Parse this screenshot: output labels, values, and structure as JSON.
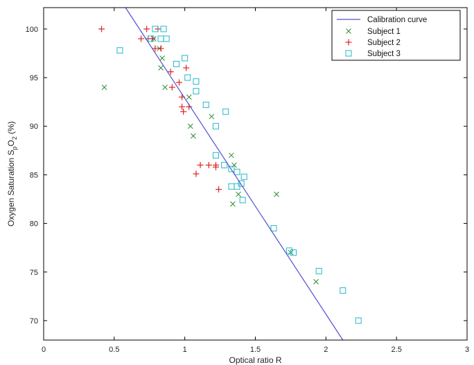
{
  "chart_data": {
    "type": "scatter",
    "title": "",
    "xlabel": "Optical ratio R",
    "ylabel": "Oxygen Saturation S_pO_2 (%)",
    "ylabel_parts": {
      "main": "Oxygen Saturation S",
      "sub1": "p",
      "mid": "O",
      "sub2": "2",
      "tail": " (%)"
    },
    "xlim": [
      0,
      3
    ],
    "ylim": [
      68,
      102.2
    ],
    "x_ticks": [
      0,
      0.5,
      1,
      1.5,
      2,
      2.5,
      3
    ],
    "x_tick_labels": [
      "0",
      "0.5",
      "1",
      "1.5",
      "2",
      "2.5",
      "3"
    ],
    "y_ticks": [
      70,
      75,
      80,
      85,
      90,
      95,
      100
    ],
    "y_tick_labels": [
      "70",
      "75",
      "80",
      "85",
      "90",
      "95",
      "100"
    ],
    "grid": false,
    "legend_position": "top-right",
    "calibration": {
      "name": "Calibration curve",
      "color": "#5050d0",
      "points": [
        [
          0.58,
          102.2
        ],
        [
          2.12,
          68
        ]
      ]
    },
    "series": [
      {
        "name": "Subject 1",
        "marker": "x",
        "color": "#2e8b2e",
        "points": [
          [
            0.43,
            94
          ],
          [
            0.78,
            99
          ],
          [
            0.82,
            98
          ],
          [
            0.84,
            97
          ],
          [
            0.83,
            96
          ],
          [
            0.86,
            94
          ],
          [
            1.03,
            93
          ],
          [
            1.04,
            90
          ],
          [
            1.06,
            89
          ],
          [
            1.19,
            91
          ],
          [
            1.33,
            87
          ],
          [
            1.35,
            86
          ],
          [
            1.34,
            82
          ],
          [
            1.38,
            83
          ],
          [
            1.65,
            83
          ],
          [
            1.75,
            77
          ],
          [
            1.93,
            74
          ]
        ]
      },
      {
        "name": "Subject 2",
        "marker": "+",
        "color": "#e02020",
        "points": [
          [
            0.41,
            100
          ],
          [
            0.73,
            100
          ],
          [
            0.81,
            100
          ],
          [
            0.69,
            99
          ],
          [
            0.74,
            99
          ],
          [
            0.77,
            99
          ],
          [
            0.79,
            98
          ],
          [
            0.83,
            98
          ],
          [
            0.9,
            95.6
          ],
          [
            0.96,
            94.5
          ],
          [
            0.91,
            94
          ],
          [
            0.98,
            93
          ],
          [
            0.98,
            92
          ],
          [
            0.99,
            91.5
          ],
          [
            1.01,
            96
          ],
          [
            1.03,
            92
          ],
          [
            1.11,
            86
          ],
          [
            1.17,
            86
          ],
          [
            1.22,
            86
          ],
          [
            1.22,
            85.8
          ],
          [
            1.08,
            85.1
          ],
          [
            1.24,
            83.5
          ]
        ]
      },
      {
        "name": "Subject 3",
        "marker": "square",
        "color": "#22b8c8",
        "points": [
          [
            0.54,
            97.8
          ],
          [
            0.76,
            99
          ],
          [
            0.79,
            100
          ],
          [
            0.85,
            100
          ],
          [
            0.83,
            99
          ],
          [
            0.87,
            99
          ],
          [
            0.94,
            96.4
          ],
          [
            1.0,
            97
          ],
          [
            1.02,
            95
          ],
          [
            1.08,
            94.6
          ],
          [
            1.08,
            93.6
          ],
          [
            1.15,
            92.2
          ],
          [
            1.22,
            90
          ],
          [
            1.29,
            91.5
          ],
          [
            1.22,
            87
          ],
          [
            1.28,
            86
          ],
          [
            1.33,
            85.6
          ],
          [
            1.37,
            85.3
          ],
          [
            1.42,
            84.8
          ],
          [
            1.4,
            84.1
          ],
          [
            1.33,
            83.8
          ],
          [
            1.37,
            83.8
          ],
          [
            1.41,
            82.4
          ],
          [
            1.63,
            79.5
          ],
          [
            1.74,
            77.2
          ],
          [
            1.77,
            77
          ],
          [
            1.95,
            75.1
          ],
          [
            2.12,
            73.1
          ],
          [
            2.23,
            70
          ]
        ]
      }
    ]
  }
}
